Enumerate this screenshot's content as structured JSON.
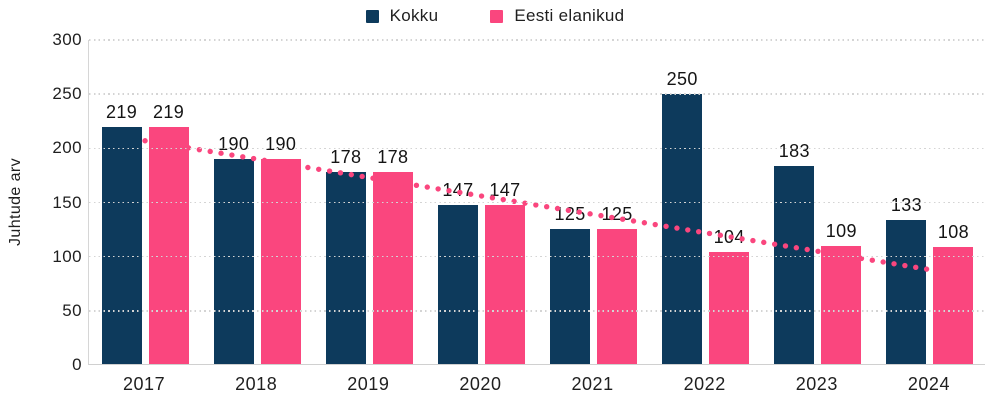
{
  "chart_data": {
    "type": "bar",
    "title": "",
    "categories": [
      "2017",
      "2018",
      "2019",
      "2020",
      "2021",
      "2022",
      "2023",
      "2024"
    ],
    "series": [
      {
        "name": "Kokku",
        "color": "#0D3A5C",
        "values": [
          219,
          190,
          178,
          147,
          125,
          250,
          183,
          133
        ]
      },
      {
        "name": "Eesti elanikud",
        "color": "#FA467E",
        "values": [
          219,
          190,
          178,
          147,
          125,
          104,
          109,
          108
        ]
      }
    ],
    "ylabel": "Juhtude arv",
    "xlabel": "",
    "ylim": [
      0,
      300
    ],
    "yticks": [
      0,
      50,
      100,
      150,
      200,
      250,
      300
    ],
    "grid": "horizontal-dotted",
    "gridline_color": "#d4d4d4",
    "legend_position": "top-center",
    "bar_value_labels": true,
    "trendline": {
      "series": "Eesti elanikud",
      "type": "linear",
      "style": "dotted",
      "color": "#FA467E",
      "start_value": 207,
      "end_value": 88
    }
  }
}
